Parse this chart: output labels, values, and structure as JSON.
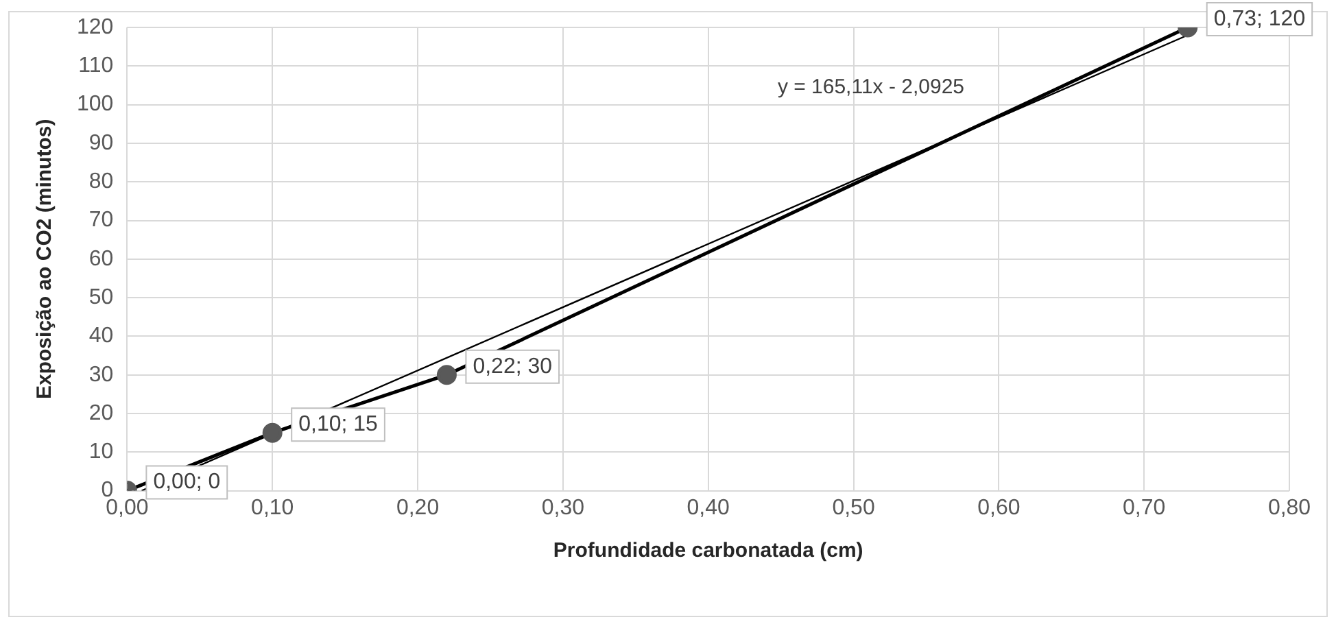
{
  "chart_data": {
    "type": "scatter",
    "xlabel": "Profundidade carbonatada (cm)",
    "ylabel": "Exposição ao CO2 (minutos)",
    "xlim": [
      0,
      0.8
    ],
    "xticks": [
      {
        "value": 0,
        "label": "0,00"
      },
      {
        "value": 0.1,
        "label": "0,10"
      },
      {
        "value": 0.2,
        "label": "0,20"
      },
      {
        "value": 0.3,
        "label": "0,30"
      },
      {
        "value": 0.4,
        "label": "0,40"
      },
      {
        "value": 0.5,
        "label": "0,50"
      },
      {
        "value": 0.6,
        "label": "0,60"
      },
      {
        "value": 0.7,
        "label": "0,70"
      },
      {
        "value": 0.8,
        "label": "0,80"
      }
    ],
    "ylim": [
      0,
      120
    ],
    "yticks": [
      0,
      10,
      20,
      30,
      40,
      50,
      60,
      70,
      80,
      90,
      100,
      110,
      120
    ],
    "grid": true,
    "legend": false,
    "series": [
      {
        "type": "line",
        "color": "#000000",
        "marker": "circle",
        "line_style": "solid",
        "x": [
          0,
          0.1,
          0.22,
          0.73
        ],
        "values": [
          0,
          15,
          30,
          120
        ],
        "value_labels": [
          "0,00; 0",
          "0,10; 15",
          "0,22; 30",
          "0,73; 120"
        ]
      },
      {
        "type": "line",
        "color": "#000000",
        "marker": "none",
        "line_style": "solid",
        "x": [
          0.01,
          0.73
        ],
        "values": [
          0,
          118
        ]
      }
    ],
    "annotations": [
      "y = 165,11x - 2,0925"
    ]
  }
}
